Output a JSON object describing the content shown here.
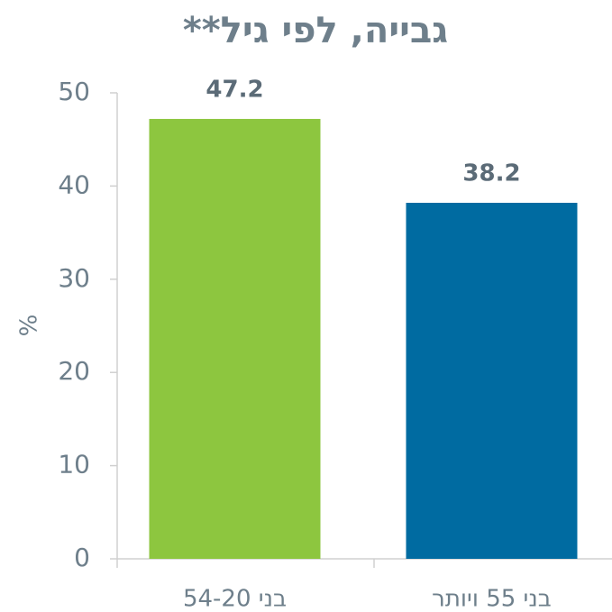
{
  "chart_data": {
    "type": "bar",
    "title": "גבייה, לפי גיל**",
    "y_label": "%",
    "categories": [
      "בני 54-20",
      "בני 55 ויותר"
    ],
    "series": [
      {
        "name": null,
        "colors": [
          "#8dc63f",
          "#006ba1"
        ],
        "values": [
          47.2,
          38.2
        ]
      }
    ],
    "ylim": [
      0,
      50
    ],
    "yticks": [
      0,
      10,
      20,
      30,
      40,
      50
    ]
  }
}
